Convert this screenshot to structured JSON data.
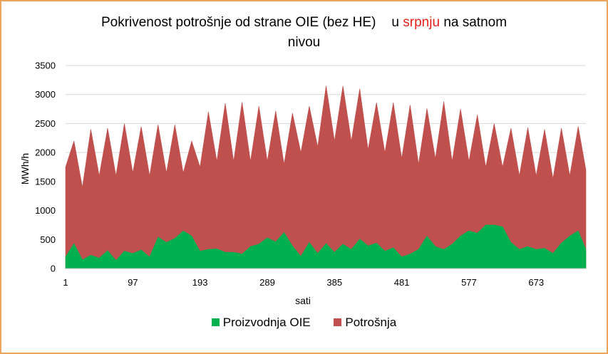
{
  "chart_data": {
    "type": "area",
    "title": {
      "part1": "Pokrivenost potrošnje od strane OIE (bez HE)",
      "part2": "u",
      "highlight": "srpnju",
      "part3": "na satnom",
      "line2": "nivou"
    },
    "highlight_color": "#e8201a",
    "xlabel": "sati",
    "ylabel": "MWh/h",
    "ylim": [
      0,
      3500
    ],
    "yticks": [
      0,
      500,
      1000,
      1500,
      2000,
      2500,
      3000,
      3500
    ],
    "xlim": [
      1,
      744
    ],
    "xticks": [
      1,
      97,
      193,
      289,
      385,
      481,
      577,
      673
    ],
    "grid": true,
    "legend_position": "bottom",
    "series": [
      {
        "name": "Proizvodnja OIE",
        "color": "#00b050",
        "x": [
          1,
          13,
          25,
          37,
          49,
          61,
          73,
          85,
          97,
          109,
          121,
          133,
          145,
          157,
          169,
          181,
          193,
          205,
          217,
          229,
          241,
          253,
          265,
          277,
          289,
          301,
          313,
          325,
          337,
          349,
          361,
          373,
          385,
          397,
          409,
          421,
          433,
          445,
          457,
          469,
          481,
          493,
          505,
          517,
          529,
          541,
          553,
          565,
          577,
          589,
          601,
          613,
          625,
          637,
          649,
          661,
          673,
          685,
          697,
          709,
          721,
          733,
          744
        ],
        "values": [
          200,
          430,
          150,
          230,
          180,
          310,
          140,
          300,
          260,
          320,
          200,
          540,
          450,
          520,
          650,
          560,
          300,
          330,
          340,
          280,
          280,
          250,
          380,
          420,
          530,
          460,
          620,
          390,
          210,
          450,
          260,
          430,
          280,
          420,
          330,
          510,
          390,
          440,
          300,
          360,
          200,
          250,
          330,
          560,
          380,
          330,
          420,
          560,
          650,
          610,
          750,
          750,
          720,
          450,
          330,
          380,
          330,
          350,
          260,
          440,
          560,
          650,
          330
        ]
      },
      {
        "name": "Potrošnja",
        "color": "#c0504d",
        "x": [
          1,
          13,
          25,
          37,
          49,
          61,
          73,
          85,
          97,
          109,
          121,
          133,
          145,
          157,
          169,
          181,
          193,
          205,
          217,
          229,
          241,
          253,
          265,
          277,
          289,
          301,
          313,
          325,
          337,
          349,
          361,
          373,
          385,
          397,
          409,
          421,
          433,
          445,
          457,
          469,
          481,
          493,
          505,
          517,
          529,
          541,
          553,
          565,
          577,
          589,
          601,
          613,
          625,
          637,
          649,
          661,
          673,
          685,
          697,
          709,
          721,
          733,
          744
        ],
        "values": [
          1750,
          2200,
          1400,
          2400,
          1600,
          2420,
          1600,
          2500,
          1650,
          2450,
          1600,
          2480,
          1650,
          2480,
          1650,
          2200,
          1750,
          2700,
          1850,
          2850,
          1850,
          2870,
          1850,
          2800,
          1850,
          2720,
          1800,
          2680,
          2000,
          2800,
          2100,
          3150,
          2200,
          3150,
          2200,
          3100,
          2050,
          2860,
          2000,
          2860,
          1900,
          2820,
          1800,
          2760,
          1900,
          2880,
          1850,
          2750,
          1850,
          2650,
          1750,
          2500,
          1750,
          2420,
          1600,
          2430,
          1600,
          2400,
          1550,
          2420,
          1600,
          2450,
          1700
        ]
      }
    ]
  }
}
